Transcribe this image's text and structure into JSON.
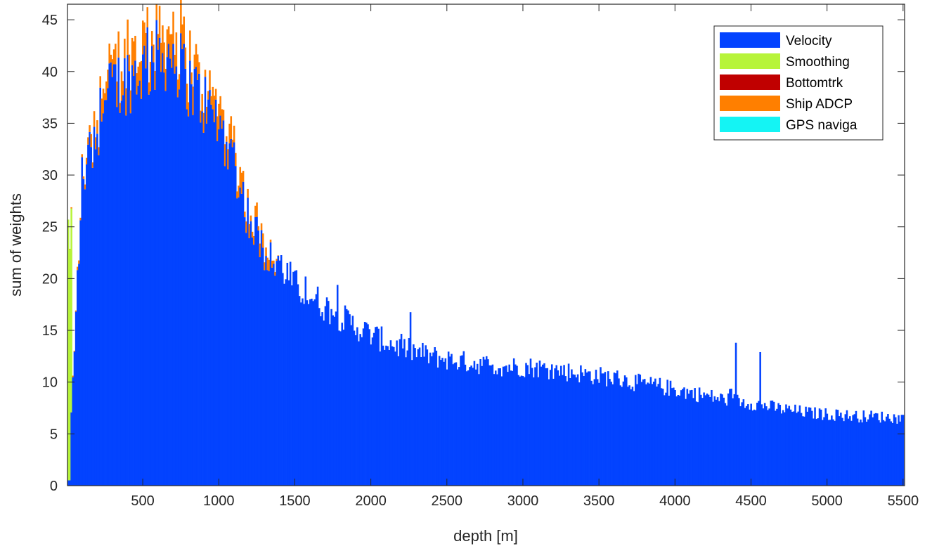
{
  "chart_data": {
    "type": "bar",
    "stacked": true,
    "title": "",
    "xlabel": "depth [m]",
    "ylabel": "sum of weights",
    "xlim": [
      5,
      5510
    ],
    "ylim": [
      0,
      46.5
    ],
    "xticks": [
      500,
      1000,
      1500,
      2000,
      2500,
      3000,
      3500,
      4000,
      4500,
      5000,
      5500
    ],
    "yticks": [
      0,
      5,
      10,
      15,
      20,
      25,
      30,
      35,
      40,
      45
    ],
    "bin_width_m": 10,
    "grid": false,
    "box": true,
    "legend_position": "top-right",
    "x": [
      10,
      100,
      200,
      300,
      400,
      500,
      600,
      700,
      800,
      900,
      1000,
      1100,
      1200,
      1300,
      1400,
      1500,
      1600,
      1700,
      1800,
      1900,
      2000,
      2100,
      2200,
      2300,
      2400,
      2500,
      2600,
      2700,
      2800,
      2900,
      3000,
      3100,
      3200,
      3300,
      3400,
      3500,
      3600,
      3700,
      3800,
      3900,
      4000,
      4100,
      4200,
      4300,
      4400,
      4500,
      4600,
      4700,
      4800,
      4900,
      5000,
      5100,
      5200,
      5300,
      5400,
      5500
    ],
    "series": [
      {
        "name": "Velocity",
        "color": "#0343ff",
        "values": [
          0.4,
          29.5,
          34.5,
          38.5,
          39.3,
          40.2,
          41.5,
          41.8,
          39.0,
          37.0,
          35.0,
          31.5,
          25.5,
          22.8,
          21.5,
          19.3,
          18.4,
          17.3,
          16.3,
          15.4,
          14.6,
          13.9,
          13.3,
          12.9,
          12.5,
          12.2,
          12.0,
          11.8,
          11.6,
          11.5,
          11.5,
          11.4,
          11.2,
          11.0,
          10.8,
          10.6,
          10.4,
          10.1,
          9.8,
          9.6,
          9.3,
          9.0,
          8.7,
          8.4,
          8.2,
          8.0,
          7.7,
          7.4,
          7.2,
          7.0,
          6.9,
          6.8,
          6.7,
          6.7,
          6.6,
          6.5
        ]
      },
      {
        "name": "Smoothing",
        "color": "#b7f43a",
        "values": [
          24.5,
          0.2,
          0,
          0,
          0,
          0,
          0,
          0,
          0,
          0,
          0,
          0,
          0,
          0,
          0,
          0,
          0,
          0,
          0,
          0,
          0,
          0,
          0,
          0,
          0,
          0,
          0,
          0,
          0,
          0,
          0,
          0,
          0,
          0,
          0,
          0,
          0,
          0,
          0,
          0,
          0,
          0,
          0,
          0,
          0,
          0,
          0,
          0,
          0,
          0,
          0,
          0,
          0,
          0,
          0,
          0
        ]
      },
      {
        "name": "Bottomtrk",
        "color": "#c00000",
        "values": [
          0,
          0,
          0,
          0,
          0,
          0,
          0,
          0,
          0,
          0,
          0,
          0,
          0,
          0,
          0,
          0,
          0,
          0,
          0,
          0,
          0,
          0,
          0,
          0,
          0,
          0,
          0,
          0,
          0,
          0,
          0,
          0,
          0,
          0,
          0,
          0,
          0,
          0,
          0,
          0,
          0,
          0,
          0,
          0,
          0,
          0,
          0,
          0,
          0,
          0,
          0,
          0,
          0,
          0,
          0,
          0
        ]
      },
      {
        "name": "Ship ADCP",
        "color": "#ff7f00",
        "values": [
          0,
          0.3,
          1.3,
          1.8,
          1.9,
          2.1,
          2.0,
          1.9,
          1.7,
          1.5,
          1.4,
          1.2,
          1.1,
          0.9,
          0,
          0,
          0,
          0,
          0,
          0,
          0,
          0,
          0,
          0,
          0,
          0,
          0,
          0,
          0,
          0,
          0,
          0,
          0,
          0,
          0,
          0,
          0,
          0,
          0,
          0,
          0,
          0,
          0,
          0,
          0,
          0,
          0,
          0,
          0,
          0,
          0,
          0,
          0,
          0,
          0,
          0
        ]
      },
      {
        "name": "GPS naviga",
        "color": "#14f4f4",
        "values": [
          0,
          0,
          0,
          0,
          0,
          0,
          0,
          0,
          0,
          0,
          0,
          0,
          0,
          0,
          0,
          0,
          0,
          0,
          0,
          0,
          0,
          0,
          0,
          0,
          0,
          0,
          0,
          0,
          0,
          0,
          0,
          0,
          0,
          0,
          0,
          0,
          0,
          0,
          0,
          0,
          0,
          0,
          0,
          0,
          0,
          0,
          0,
          0,
          0,
          0,
          0,
          0,
          0,
          0,
          0,
          0
        ]
      }
    ],
    "annotations": [
      {
        "x": 4400,
        "y": 13.8
      },
      {
        "x": 4560,
        "y": 12.9
      }
    ]
  }
}
